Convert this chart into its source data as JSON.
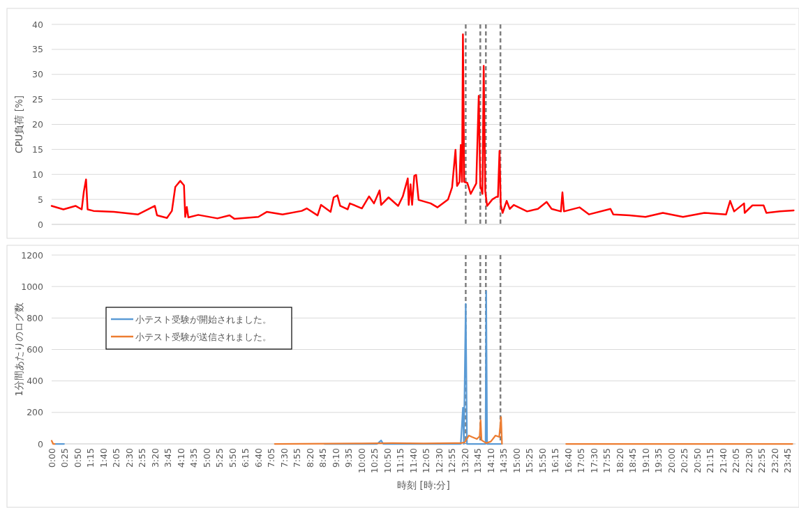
{
  "chart_data": [
    {
      "type": "line",
      "ylabel": "CPU負荷 [%]",
      "xlim": [
        0,
        24
      ],
      "ylim": [
        0,
        40
      ],
      "yticks": [
        0,
        5,
        10,
        15,
        20,
        25,
        30,
        35,
        40
      ],
      "grid": "y",
      "tick_labels": "y",
      "legend": false,
      "ref_lines": [
        {
          "axis": "x",
          "value": 13.36,
          "color": "#7f7f7f",
          "line_style": "dashed"
        },
        {
          "axis": "x",
          "value": 13.83,
          "color": "#7f7f7f",
          "line_style": "dashed"
        },
        {
          "axis": "x",
          "value": 14.01,
          "color": "#7f7f7f",
          "line_style": "dashed"
        },
        {
          "axis": "x",
          "value": 14.48,
          "color": "#7f7f7f",
          "line_style": "dashed"
        }
      ],
      "series": [
        {
          "color": "#ff0000",
          "x": [
            0,
            0.38,
            0.77,
            0.97,
            1.04,
            1.11,
            1.16,
            1.35,
            2.01,
            2.79,
            3.33,
            3.4,
            3.72,
            3.88,
            3.99,
            4.15,
            4.27,
            4.31,
            4.36,
            4.41,
            4.73,
            5.35,
            5.74,
            5.9,
            6.67,
            6.94,
            7.45,
            8.07,
            8.23,
            8.58,
            8.69,
            9.0,
            9.1,
            9.22,
            9.31,
            9.55,
            9.62,
            10.01,
            10.24,
            10.4,
            10.58,
            10.63,
            10.87,
            11.18,
            11.33,
            11.49,
            11.52,
            11.58,
            11.63,
            11.7,
            11.76,
            11.84,
            12.23,
            12.45,
            12.79,
            12.92,
            13.03,
            13.08,
            13.16,
            13.2,
            13.24,
            13.27,
            13.31,
            13.41,
            13.52,
            13.7,
            13.78,
            13.83,
            13.9,
            13.94,
            13.99,
            14.05,
            14.22,
            14.35,
            14.4,
            14.45,
            14.49,
            14.55,
            14.68,
            14.78,
            14.91,
            15.34,
            15.69,
            15.97,
            16.13,
            16.43,
            16.48,
            16.53,
            17.03,
            17.34,
            18.03,
            18.12,
            18.64,
            19.16,
            19.72,
            20.37,
            21.06,
            21.76,
            21.89,
            22.02,
            22.34,
            22.36,
            22.61,
            22.97,
            23.06,
            23.5,
            23.94
          ],
          "values": [
            3.7,
            3.0,
            3.7,
            3.0,
            6.6,
            9.0,
            3.0,
            2.7,
            2.5,
            2.0,
            3.7,
            1.8,
            1.3,
            2.7,
            7.5,
            8.7,
            7.8,
            1.5,
            3.5,
            1.4,
            1.9,
            1.2,
            1.8,
            1.1,
            1.5,
            2.5,
            2.0,
            2.7,
            3.2,
            1.8,
            3.9,
            2.5,
            5.4,
            5.8,
            3.7,
            3.0,
            4.2,
            3.2,
            5.6,
            4.2,
            6.8,
            3.9,
            5.4,
            3.7,
            5.6,
            9.2,
            3.9,
            8.0,
            3.9,
            9.7,
            9.9,
            4.9,
            4.2,
            3.4,
            5.0,
            7.4,
            14.9,
            7.7,
            8.5,
            15.9,
            8.5,
            38.0,
            8.5,
            8.3,
            6.1,
            8.2,
            25.7,
            7.7,
            6.1,
            31.7,
            6.6,
            3.7,
            5.0,
            5.5,
            5.5,
            14.7,
            3.9,
            2.3,
            4.7,
            3.1,
            3.9,
            2.6,
            3.1,
            4.5,
            3.1,
            2.6,
            6.4,
            2.6,
            3.4,
            2.0,
            3.1,
            2.0,
            1.8,
            1.5,
            2.3,
            1.5,
            2.3,
            2.0,
            4.7,
            2.6,
            4.2,
            2.3,
            3.8,
            3.8,
            2.3,
            2.6,
            2.8
          ]
        }
      ]
    },
    {
      "type": "line",
      "ylabel": "1分間あたりのログ数",
      "xlabel": "時刻 [時:分]",
      "xlim": [
        0,
        24
      ],
      "ylim": [
        0,
        1200
      ],
      "yticks": [
        0,
        200,
        400,
        600,
        800,
        1000,
        1200
      ],
      "grid": "y",
      "legend": "top left",
      "xticks": [
        {
          "value": 0,
          "label": "0:00"
        },
        {
          "value": 0.4167,
          "label": "0:25"
        },
        {
          "value": 0.8333,
          "label": "0:50"
        },
        {
          "value": 1.25,
          "label": "1:15"
        },
        {
          "value": 1.6667,
          "label": "1:40"
        },
        {
          "value": 2.0833,
          "label": "2:05"
        },
        {
          "value": 2.5,
          "label": "2:30"
        },
        {
          "value": 2.9167,
          "label": "2:55"
        },
        {
          "value": 3.3333,
          "label": "3:20"
        },
        {
          "value": 3.75,
          "label": "3:45"
        },
        {
          "value": 4.1667,
          "label": "4:10"
        },
        {
          "value": 4.5833,
          "label": "4:35"
        },
        {
          "value": 5,
          "label": "5:00"
        },
        {
          "value": 5.4167,
          "label": "5:25"
        },
        {
          "value": 5.8333,
          "label": "5:50"
        },
        {
          "value": 6.25,
          "label": "6:15"
        },
        {
          "value": 6.6667,
          "label": "6:40"
        },
        {
          "value": 7.0833,
          "label": "7:05"
        },
        {
          "value": 7.5,
          "label": "7:30"
        },
        {
          "value": 7.9167,
          "label": "7:55"
        },
        {
          "value": 8.3333,
          "label": "8:20"
        },
        {
          "value": 8.75,
          "label": "8:45"
        },
        {
          "value": 9.1667,
          "label": "9:10"
        },
        {
          "value": 9.5833,
          "label": "9:35"
        },
        {
          "value": 10,
          "label": "10:00"
        },
        {
          "value": 10.4167,
          "label": "10:25"
        },
        {
          "value": 10.8333,
          "label": "10:50"
        },
        {
          "value": 11.25,
          "label": "11:15"
        },
        {
          "value": 11.6667,
          "label": "11:40"
        },
        {
          "value": 12.0833,
          "label": "12:05"
        },
        {
          "value": 12.5,
          "label": "12:30"
        },
        {
          "value": 12.9167,
          "label": "12:55"
        },
        {
          "value": 13.3333,
          "label": "13:20"
        },
        {
          "value": 13.75,
          "label": "13:45"
        },
        {
          "value": 14.1667,
          "label": "14:10"
        },
        {
          "value": 14.5833,
          "label": "14:35"
        },
        {
          "value": 15,
          "label": "15:00"
        },
        {
          "value": 15.4167,
          "label": "15:25"
        },
        {
          "value": 15.8333,
          "label": "15:50"
        },
        {
          "value": 16.25,
          "label": "16:15"
        },
        {
          "value": 16.6667,
          "label": "16:40"
        },
        {
          "value": 17.0833,
          "label": "17:05"
        },
        {
          "value": 17.5,
          "label": "17:30"
        },
        {
          "value": 17.9167,
          "label": "17:55"
        },
        {
          "value": 18.3333,
          "label": "18:20"
        },
        {
          "value": 18.75,
          "label": "18:45"
        },
        {
          "value": 19.1667,
          "label": "19:10"
        },
        {
          "value": 19.5833,
          "label": "19:35"
        },
        {
          "value": 20,
          "label": "20:00"
        },
        {
          "value": 20.4167,
          "label": "20:25"
        },
        {
          "value": 20.8333,
          "label": "20:50"
        },
        {
          "value": 21.25,
          "label": "21:15"
        },
        {
          "value": 21.6667,
          "label": "21:40"
        },
        {
          "value": 22.0833,
          "label": "22:05"
        },
        {
          "value": 22.5,
          "label": "22:30"
        },
        {
          "value": 22.9167,
          "label": "22:55"
        },
        {
          "value": 23.3333,
          "label": "23:20"
        },
        {
          "value": 23.75,
          "label": "23:45"
        }
      ],
      "ref_lines": [
        {
          "axis": "x",
          "value": 13.36,
          "color": "#7f7f7f",
          "line_style": "dashed"
        },
        {
          "axis": "x",
          "value": 13.83,
          "color": "#7f7f7f",
          "line_style": "dashed"
        },
        {
          "axis": "x",
          "value": 14.01,
          "color": "#7f7f7f",
          "line_style": "dashed"
        },
        {
          "axis": "x",
          "value": 14.48,
          "color": "#7f7f7f",
          "line_style": "dashed"
        }
      ],
      "series": [
        {
          "name": "小テスト受験が開始されました。",
          "color": "#5b9bd5",
          "x": [
            0.1,
            0.4,
            null,
            8.8,
            10.5,
            10.63,
            10.7,
            13.2,
            13.27,
            13.3,
            13.36,
            13.4,
            14.0,
            14.02,
            14.05,
            14.5
          ],
          "values": [
            0,
            0,
            null,
            0,
            0,
            22,
            0,
            0,
            230,
            0,
            890,
            0,
            0,
            970,
            0,
            0
          ]
        },
        {
          "name": "小テスト受験が送信されました。",
          "color": "#ed7d31",
          "x": [
            0,
            0.05,
            0.1,
            null,
            7.2,
            10.0,
            11.0,
            12.0,
            13.0,
            13.2,
            13.33,
            13.46,
            13.56,
            13.72,
            13.81,
            13.84,
            13.87,
            14.02,
            14.17,
            14.32,
            14.44,
            14.5,
            14.53,
            null,
            16.6,
            23.9
          ],
          "values": [
            20,
            0,
            0,
            null,
            0,
            3,
            5,
            3,
            5,
            5,
            10,
            53,
            44,
            31,
            49,
            150,
            24,
            5,
            15,
            53,
            44,
            170,
            0,
            null,
            0,
            0
          ]
        }
      ]
    }
  ]
}
